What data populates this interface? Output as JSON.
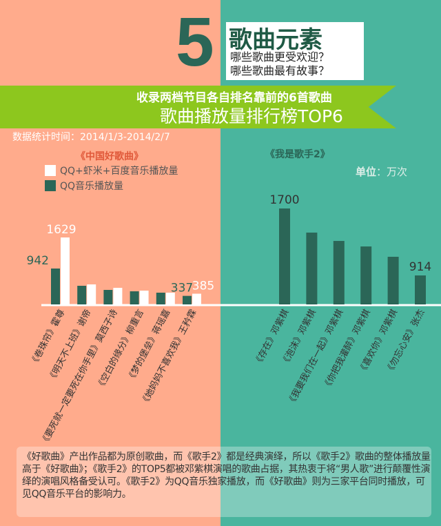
{
  "header": {
    "number": "5",
    "title": "歌曲元素",
    "subtitle1": "哪些歌曲更受欢迎？",
    "subtitle2": "哪些歌曲最有故事？",
    "ribbon1": "收录两档节目各自排名靠前的6首歌曲",
    "ribbon2": "歌曲播放量排行榜TOP6"
  },
  "date_range": "数据统计时间：2014/1/3-2014/2/7",
  "unit_label": "单位",
  "unit_value": "：万次",
  "colors": {
    "left_bg": "#FFAB8C",
    "right_bg": "#4AB59E",
    "dark_bar": "#2B6657",
    "light_bar": "#FFFFFF",
    "ribbon": "#8DC71E"
  },
  "chart_data": [
    {
      "type": "bar",
      "title": "《中国好歌曲》",
      "legend": [
        {
          "name": "QQ+虾米+百度音乐播放量",
          "color": "#FFFFFF"
        },
        {
          "name": "QQ音乐播放量",
          "color": "#2B6657"
        }
      ],
      "categories": [
        "《卷珠帘》霍尊",
        "《明天不上班》谢帝",
        "《要死就一定要死在你手里》莫西子诗",
        "《空白的缘分》柳重言",
        "《梦的堡垒》蒋瑶嘉",
        "《她妈妈不喜欢我》王矜霖"
      ],
      "series": [
        {
          "name": "QQ音乐播放量",
          "values": [
            942,
            560,
            469,
            438,
            408,
            337
          ]
        },
        {
          "name": "QQ+虾米+百度音乐播放量",
          "values": [
            1629,
            591,
            515,
            453,
            408,
            385
          ]
        }
      ],
      "data_labels": [
        {
          "series": 0,
          "index": 0,
          "text": "942"
        },
        {
          "series": 1,
          "index": 0,
          "text": "1629"
        },
        {
          "series": 0,
          "index": 5,
          "text": "337"
        },
        {
          "series": 1,
          "index": 5,
          "text": "385"
        }
      ],
      "unit": "万次"
    },
    {
      "type": "bar",
      "title": "《我是歌手2》",
      "categories": [
        "《存在》邓紫棋",
        "《泡沫》邓紫棋",
        "《我要我们在一起》邓紫棋",
        "《你把我灌醉》邓紫棋",
        "《喜欢你》邓紫棋",
        "《勿忘心安》张杰"
      ],
      "series": [
        {
          "name": "QQ音乐播放量",
          "values": [
            1700,
            1417,
            1319,
            1254,
            1133,
            914
          ]
        }
      ],
      "data_labels": [
        {
          "series": 0,
          "index": 0,
          "text": "1700"
        },
        {
          "series": 0,
          "index": 5,
          "text": "914"
        }
      ],
      "unit": "万次"
    }
  ],
  "note": "《好歌曲》产出作品都为原创歌曲，而《歌手2》都是经典演绎，所以《歌手2》歌曲的整体播放量高于《好歌曲》；《歌手2》的TOP5都被邓紫棋演唱的歌曲占据，其热衷于将“男人歌”进行颠覆性演绎的演唱风格备受认可。《歌手2》为QQ音乐独家播放，而《好歌曲》则为三家平台同时播放，可见QQ音乐平台的影响力。"
}
